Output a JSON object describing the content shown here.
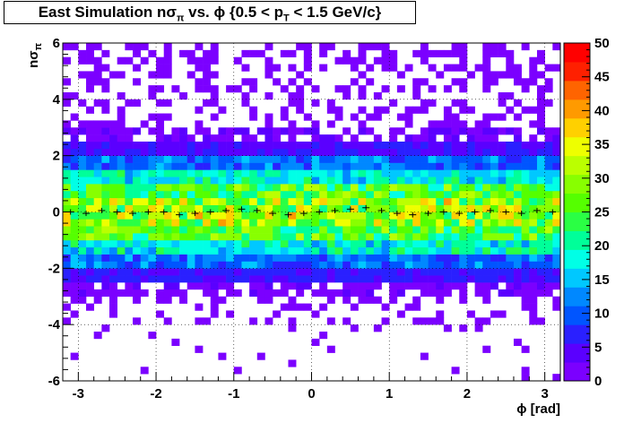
{
  "title": {
    "prefix": "East Simulation n",
    "sigma": "σ",
    "pi": "π",
    "mid": " vs. ",
    "phi": "ϕ",
    "range_prefix": " {0.5 < p",
    "sub_T": "T",
    "range_suffix": " < 1.5 GeV/c}"
  },
  "chart_data": {
    "type": "heatmap",
    "title": "East Simulation nσπ vs. ϕ {0.5 < pT < 1.5 GeV/c}",
    "xlabel": "ϕ [rad]",
    "ylabel": "nσπ",
    "xlim": [
      -3.2,
      3.2
    ],
    "ylim": [
      -6,
      6
    ],
    "zlim": [
      0,
      50
    ],
    "x_ticks": [
      "-3",
      "-2",
      "-1",
      "0",
      "1",
      "2",
      "3"
    ],
    "y_ticks": [
      "-6",
      "-4",
      "-2",
      "0",
      "2",
      "4",
      "6"
    ],
    "z_ticks": [
      "0",
      "5",
      "10",
      "15",
      "20",
      "25",
      "30",
      "35",
      "40",
      "45",
      "50"
    ],
    "x_bins": 64,
    "y_bins": 48,
    "y_profile": [
      {
        "y_min": -6.0,
        "y_max": -4.0,
        "mean_count": 0.05
      },
      {
        "y_min": -4.0,
        "y_max": -3.0,
        "mean_count": 0.3
      },
      {
        "y_min": -3.0,
        "y_max": -2.5,
        "mean_count": 2
      },
      {
        "y_min": -2.5,
        "y_max": -2.0,
        "mean_count": 6
      },
      {
        "y_min": -2.0,
        "y_max": -1.5,
        "mean_count": 11
      },
      {
        "y_min": -1.5,
        "y_max": -1.0,
        "mean_count": 18
      },
      {
        "y_min": -1.0,
        "y_max": -0.5,
        "mean_count": 25
      },
      {
        "y_min": -0.5,
        "y_max": 0.0,
        "mean_count": 30
      },
      {
        "y_min": 0.0,
        "y_max": 0.5,
        "mean_count": 30
      },
      {
        "y_min": 0.5,
        "y_max": 1.0,
        "mean_count": 25
      },
      {
        "y_min": 1.0,
        "y_max": 1.5,
        "mean_count": 18
      },
      {
        "y_min": 1.5,
        "y_max": 2.0,
        "mean_count": 11
      },
      {
        "y_min": 2.0,
        "y_max": 2.5,
        "mean_count": 5
      },
      {
        "y_min": 2.5,
        "y_max": 3.0,
        "mean_count": 2
      },
      {
        "y_min": 3.0,
        "y_max": 6.0,
        "mean_count": 0.4
      }
    ],
    "profile_mean": {
      "x": [
        -3.1,
        -2.9,
        -2.7,
        -2.5,
        -2.3,
        -2.1,
        -1.9,
        -1.7,
        -1.5,
        -1.3,
        -1.1,
        -0.9,
        -0.7,
        -0.5,
        -0.3,
        -0.1,
        0.1,
        0.3,
        0.5,
        0.7,
        0.9,
        1.1,
        1.3,
        1.5,
        1.7,
        1.9,
        2.1,
        2.3,
        2.5,
        2.7,
        2.9,
        3.1
      ],
      "y": [
        0.0,
        -0.05,
        0.05,
        0.0,
        -0.05,
        0.0,
        0.0,
        -0.1,
        -0.05,
        0.0,
        0.05,
        0.1,
        0.05,
        -0.05,
        -0.1,
        -0.05,
        0.0,
        0.05,
        0.1,
        0.15,
        0.05,
        -0.05,
        -0.1,
        -0.05,
        0.0,
        -0.05,
        0.0,
        0.05,
        0.0,
        -0.05,
        0.05,
        0.0
      ]
    },
    "grid": true,
    "palette": [
      "#7b00ff",
      "#5a00ff",
      "#2a20ff",
      "#0055ff",
      "#0088ff",
      "#00c8ff",
      "#00ffe6",
      "#00ff99",
      "#2aff44",
      "#55ff00",
      "#88ff00",
      "#bbff00",
      "#eeff00",
      "#ffd000",
      "#ff9a00",
      "#ff6400",
      "#ff2000",
      "#ff0000"
    ]
  }
}
